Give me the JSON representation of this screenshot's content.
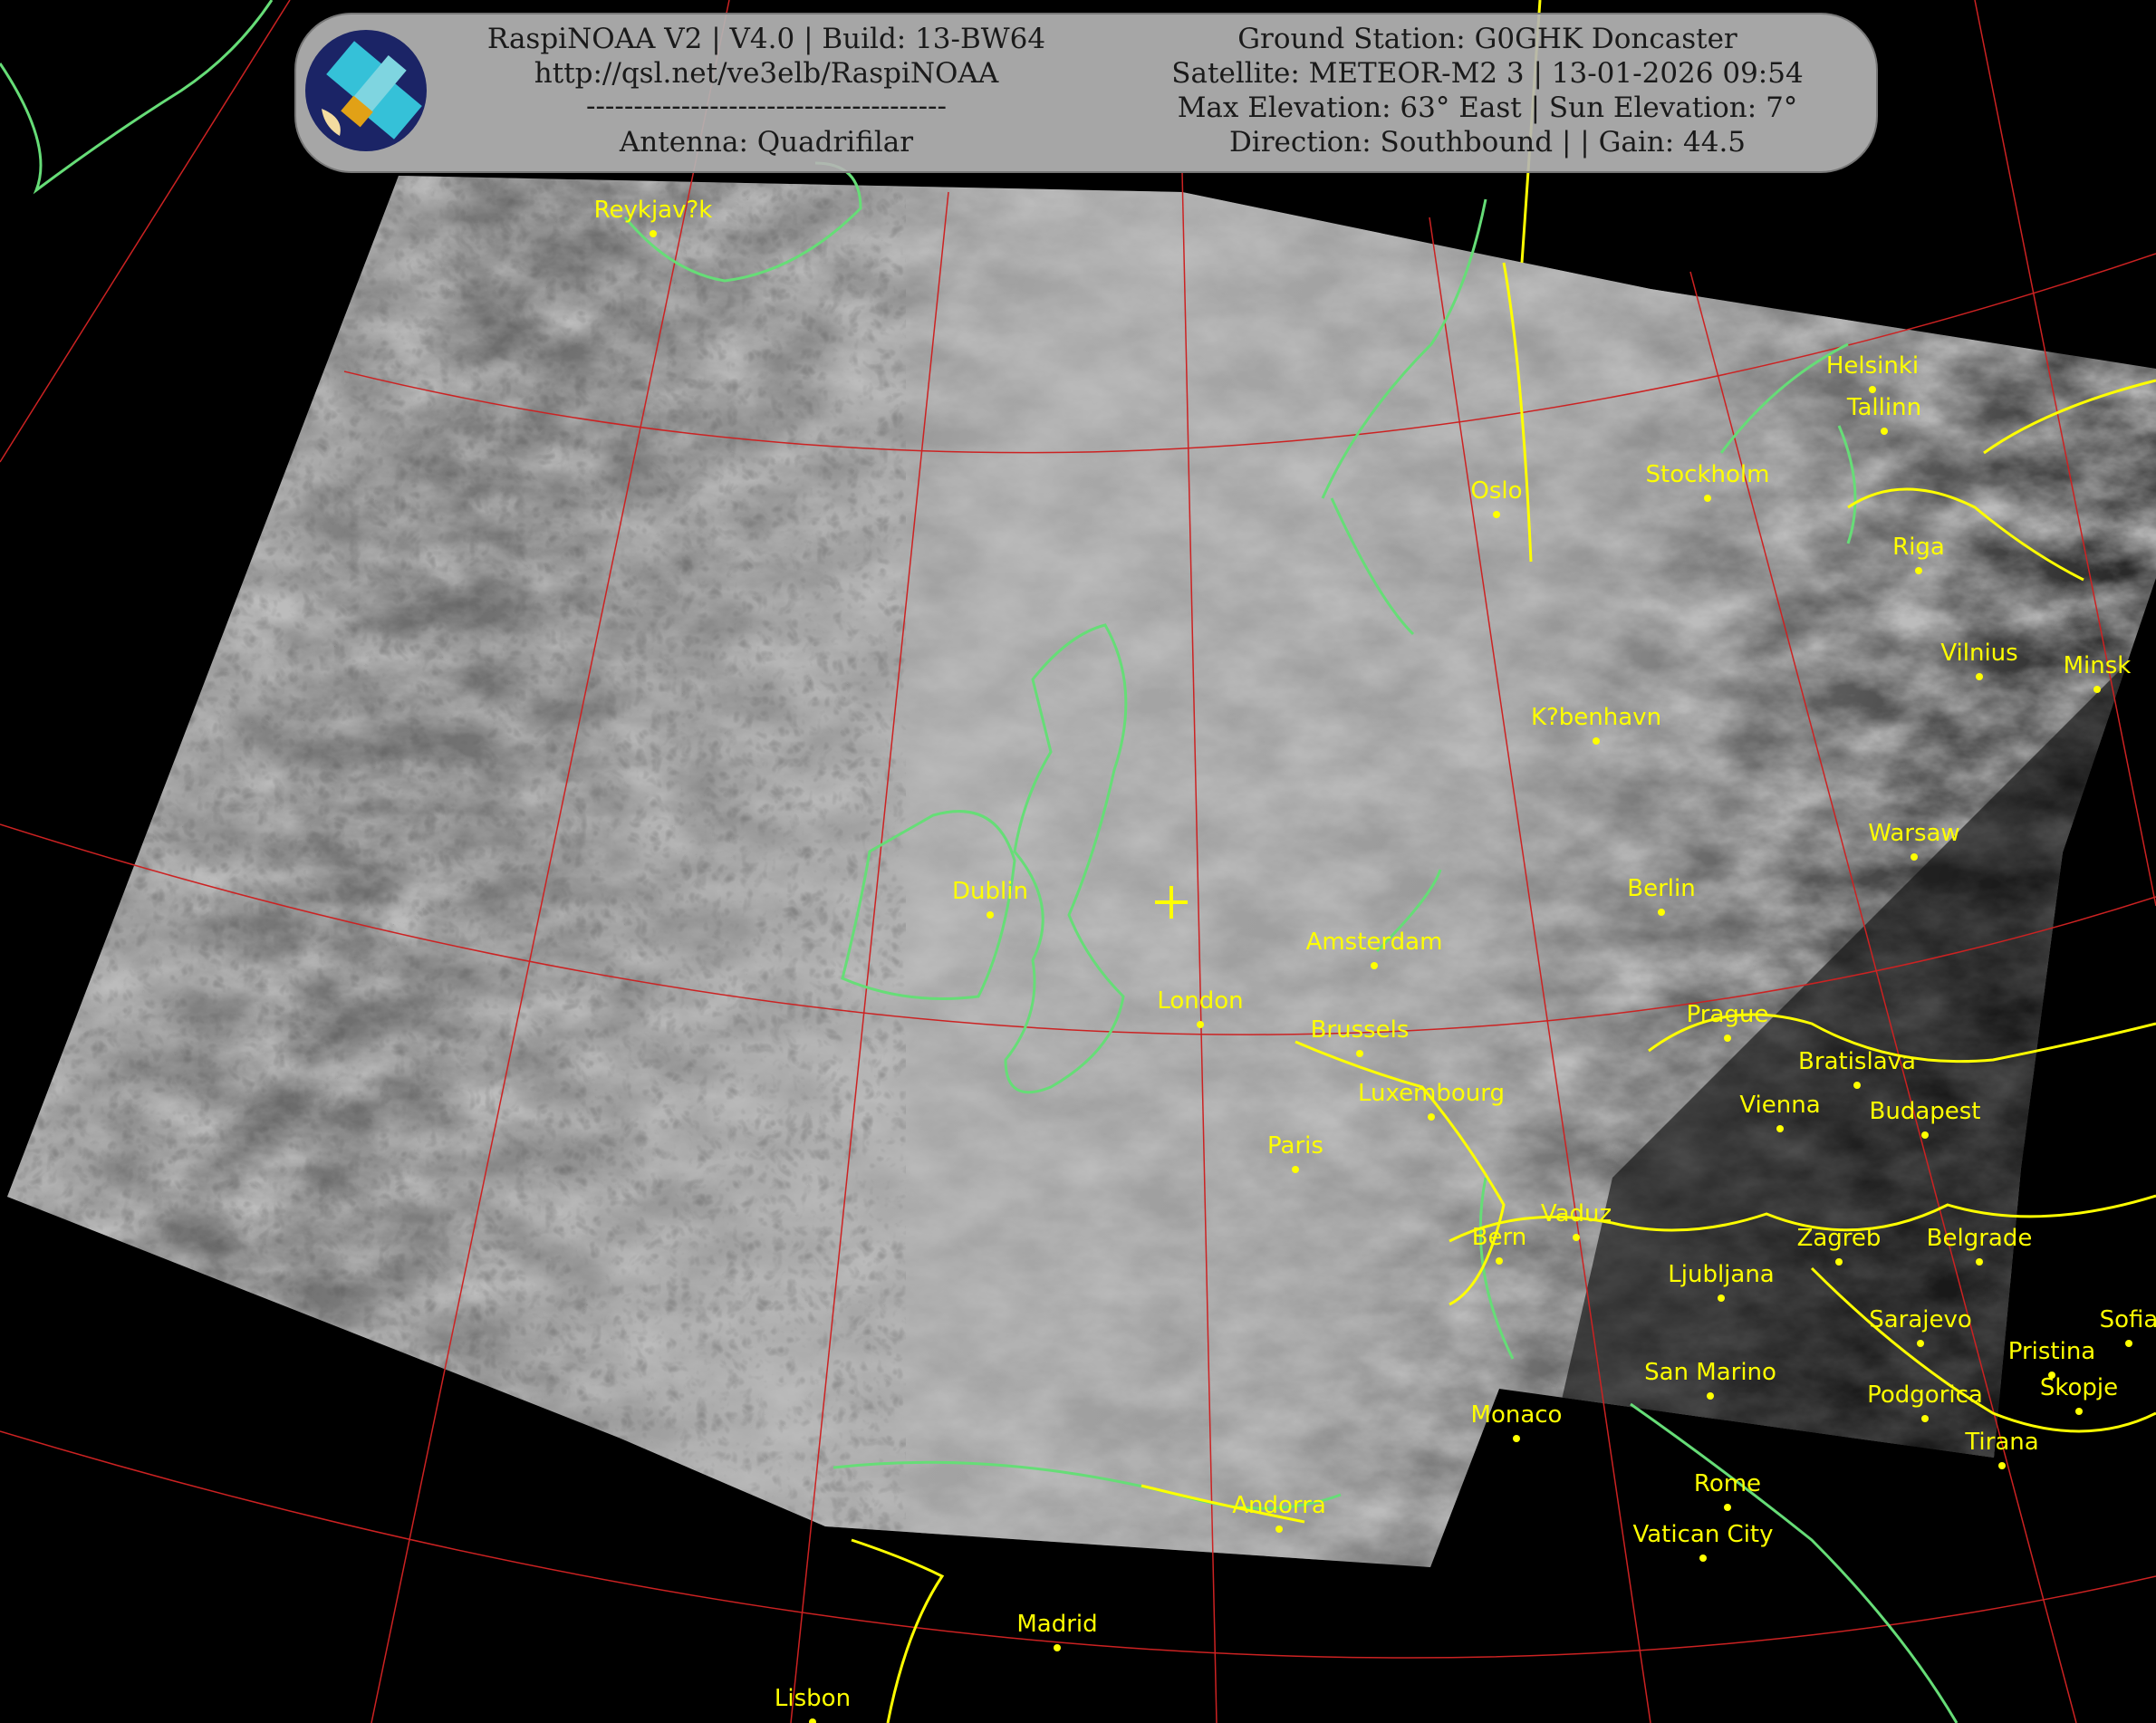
{
  "header": {
    "left": [
      "RaspiNOAA V2 | V4.0 | Build: 13-BW64",
      "http://qsl.net/ve3elb/RaspiNOAA",
      "--------------------------------------",
      "Antenna: Quadrifilar"
    ],
    "right": [
      "Ground Station: G0GHK Doncaster",
      "Satellite: METEOR-M2 3 | 13-01-2026 09:54",
      "Max Elevation: 63° East | Sun Elevation: 7°",
      "Direction: Southbound | | Gain: 44.5"
    ],
    "logo_icon": "satellite-icon"
  },
  "map": {
    "type": "satellite image",
    "cities": [
      "Reykjav?k",
      "Helsinki",
      "Tallinn",
      "Oslo",
      "Stockholm",
      "Riga",
      "Vilnius",
      "Minsk",
      "K?benhavn",
      "Warsaw",
      "Dublin",
      "Berlin",
      "Amsterdam",
      "London",
      "Brussels",
      "Prague",
      "Luxembourg",
      "Bratislava",
      "Vienna",
      "Budapest",
      "Paris",
      "Vaduz",
      "Bern",
      "Ljubljana",
      "Zagreb",
      "Belgrade",
      "Sarajevo",
      "Sofia",
      "Pristina",
      "Podgorica",
      "Skopje",
      "Tirana",
      "San Marino",
      "Vatican City",
      "Rome",
      "Monaco",
      "Andorra",
      "Madrid",
      "Lisbon"
    ],
    "colors": {
      "city_labels": "#ffff00",
      "coastline": "#66dd77",
      "borders": "#ffff00",
      "graticule": "#cc2222",
      "header_panel": "#b4b4b4"
    },
    "ground_station_marker": "crosshair-icon"
  }
}
